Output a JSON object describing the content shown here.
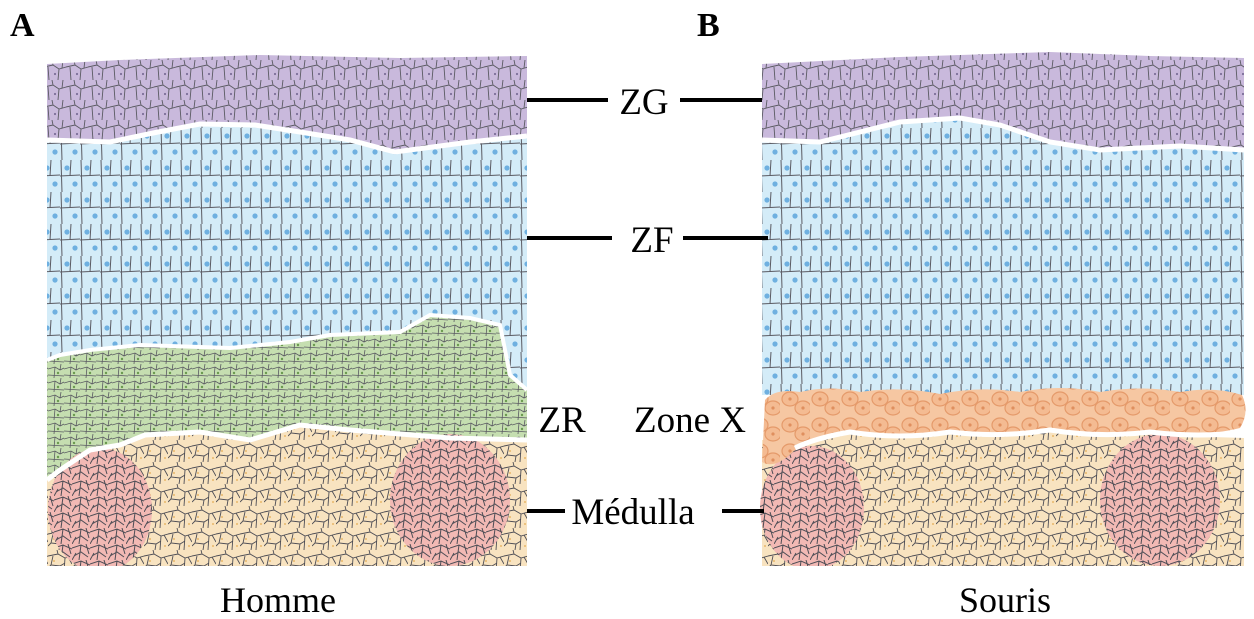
{
  "panels": {
    "left": {
      "letter": "A",
      "caption": "Homme"
    },
    "right": {
      "letter": "B",
      "caption": "Souris"
    }
  },
  "labels": {
    "zg": "ZG",
    "zf": "ZF",
    "zr": "ZR",
    "zonex": "Zone X",
    "medulla": "Médulla"
  },
  "colors": {
    "zg": "#c9b9dc",
    "zf": "#d4ecf8",
    "zr": "#c5deb0",
    "zonex": "#f6c7a2",
    "medulla": "#f8e3c0",
    "medulla_nodule": "#f2b9b4",
    "cell_line": "#5a5a62",
    "nucleus": "#6fb0e0"
  }
}
